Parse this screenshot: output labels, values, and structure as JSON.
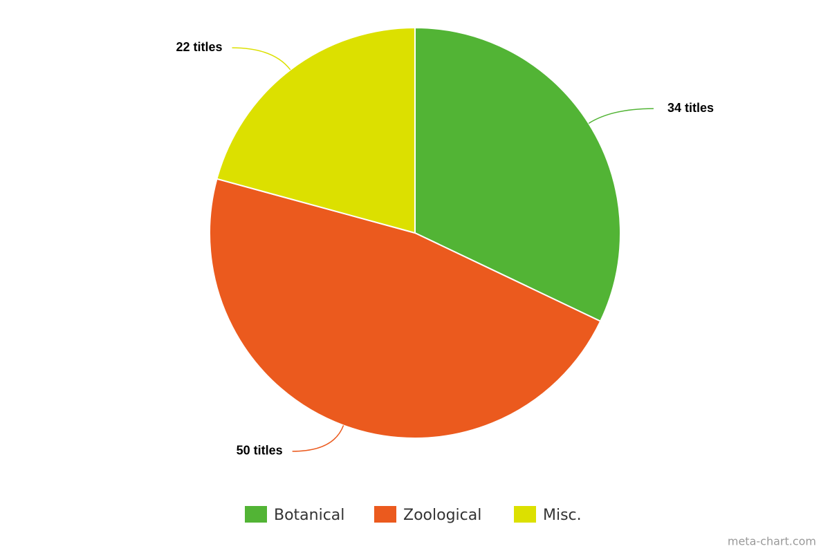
{
  "chart_data": {
    "type": "pie",
    "categories": [
      "Botanical",
      "Zoological",
      "Misc."
    ],
    "values": [
      34,
      50,
      22
    ],
    "value_labels": [
      "34 titles",
      "50 titles",
      "22 titles"
    ],
    "colors": [
      "#52b435",
      "#eb5a1e",
      "#dce000"
    ],
    "legend": "bottom",
    "credit": "meta-chart.com"
  }
}
